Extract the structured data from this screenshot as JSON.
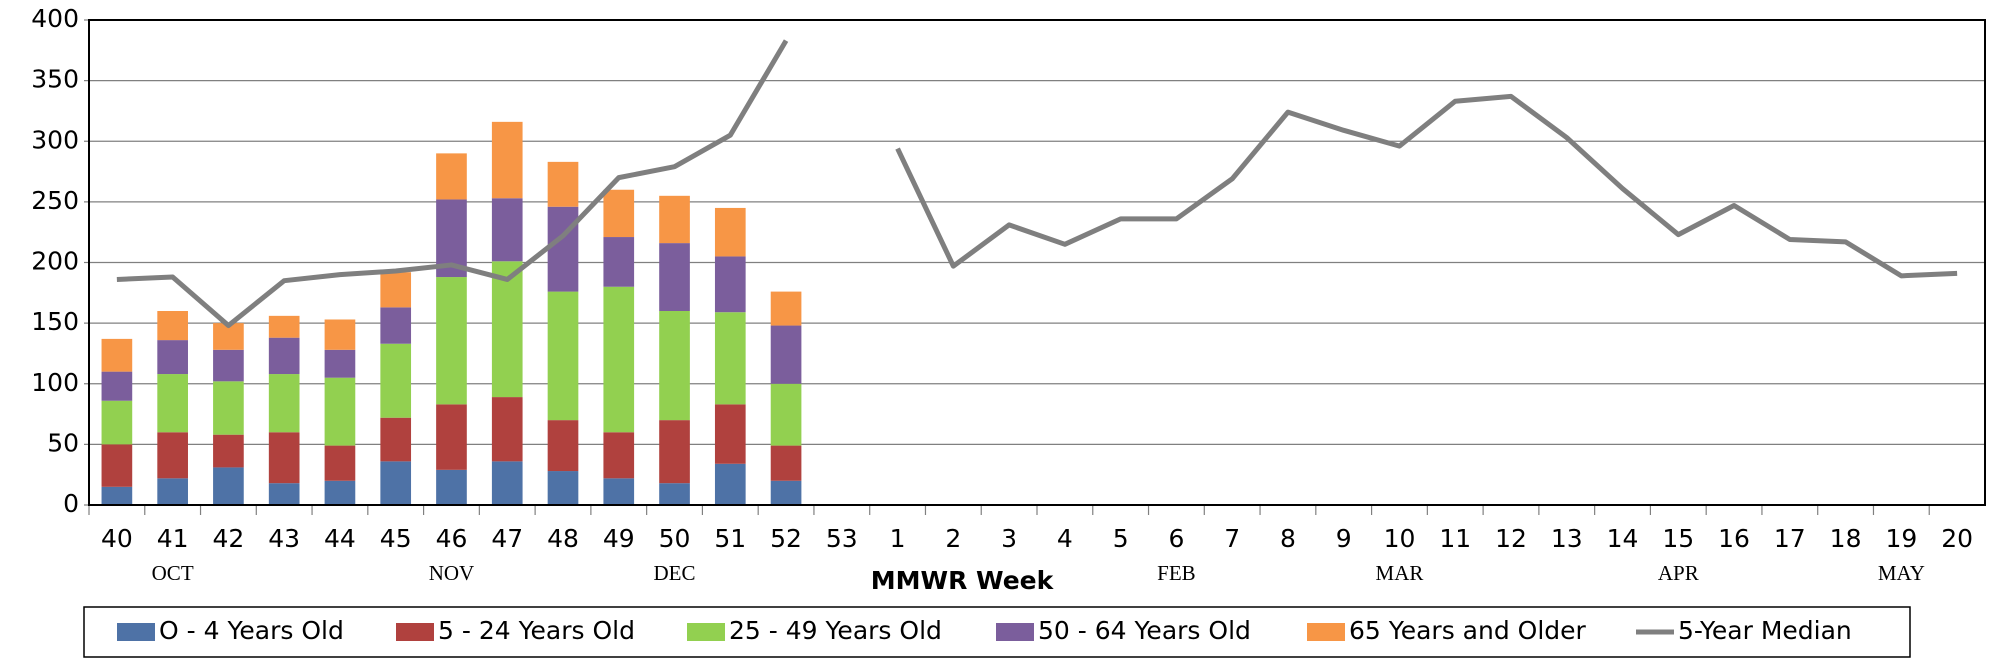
{
  "chart_data": {
    "type": "stacked-bar-line",
    "x_label": "MMWR Week",
    "categories": [
      "40",
      "41",
      "42",
      "43",
      "44",
      "45",
      "46",
      "47",
      "48",
      "49",
      "50",
      "51",
      "52",
      "53",
      "1",
      "2",
      "3",
      "4",
      "5",
      "6",
      "7",
      "8",
      "9",
      "10",
      "11",
      "12",
      "13",
      "14",
      "15",
      "16",
      "17",
      "18",
      "19",
      "20"
    ],
    "month_labels": [
      null,
      "OCT",
      null,
      null,
      null,
      null,
      "NOV",
      null,
      null,
      null,
      "DEC",
      null,
      null,
      null,
      null,
      null,
      null,
      null,
      null,
      "FEB",
      null,
      null,
      null,
      "MAR",
      null,
      null,
      null,
      null,
      "APR",
      null,
      null,
      null,
      "MAY",
      null
    ],
    "series": [
      {
        "name": "O - 4 Years Old",
        "color": "#4e72a6",
        "type": "bar",
        "values": [
          15,
          22,
          31,
          18,
          20,
          36,
          29,
          36,
          28,
          22,
          18,
          34,
          20,
          null,
          null,
          null,
          null,
          null,
          null,
          null,
          null,
          null,
          null,
          null,
          null,
          null,
          null,
          null,
          null,
          null,
          null,
          null,
          null,
          null
        ]
      },
      {
        "name": "5 - 24 Years Old",
        "color": "#b0413e",
        "type": "bar",
        "values": [
          35,
          38,
          27,
          42,
          29,
          36,
          54,
          53,
          42,
          38,
          52,
          49,
          29,
          null,
          null,
          null,
          null,
          null,
          null,
          null,
          null,
          null,
          null,
          null,
          null,
          null,
          null,
          null,
          null,
          null,
          null,
          null,
          null,
          null
        ]
      },
      {
        "name": "25 - 49 Years Old",
        "color": "#92d050",
        "type": "bar",
        "values": [
          36,
          48,
          44,
          48,
          56,
          61,
          105,
          112,
          106,
          120,
          90,
          76,
          51,
          null,
          null,
          null,
          null,
          null,
          null,
          null,
          null,
          null,
          null,
          null,
          null,
          null,
          null,
          null,
          null,
          null,
          null,
          null,
          null,
          null
        ]
      },
      {
        "name": "50 - 64 Years Old",
        "color": "#7b5e9c",
        "type": "bar",
        "values": [
          24,
          28,
          26,
          30,
          23,
          30,
          64,
          52,
          70,
          41,
          56,
          46,
          48,
          null,
          null,
          null,
          null,
          null,
          null,
          null,
          null,
          null,
          null,
          null,
          null,
          null,
          null,
          null,
          null,
          null,
          null,
          null,
          null,
          null
        ]
      },
      {
        "name": "65 Years and Older",
        "color": "#f79646",
        "type": "bar",
        "values": [
          27,
          24,
          22,
          18,
          25,
          29,
          38,
          63,
          37,
          39,
          39,
          40,
          28,
          null,
          null,
          null,
          null,
          null,
          null,
          null,
          null,
          null,
          null,
          null,
          null,
          null,
          null,
          null,
          null,
          null,
          null,
          null,
          null,
          null
        ]
      },
      {
        "name": "5-Year Median",
        "color": "#7f7f7f",
        "type": "line",
        "values": [
          186,
          188,
          148,
          185,
          190,
          193,
          198,
          186,
          222,
          270,
          279,
          305,
          383,
          null,
          294,
          197,
          231,
          215,
          236,
          236,
          269,
          324,
          309,
          296,
          333,
          337,
          303,
          261,
          223,
          247,
          219,
          217,
          189,
          191
        ]
      }
    ],
    "ylim": [
      0,
      400
    ],
    "yticks": [
      0,
      50,
      100,
      150,
      200,
      250,
      300,
      350,
      400
    ],
    "grid": true
  }
}
